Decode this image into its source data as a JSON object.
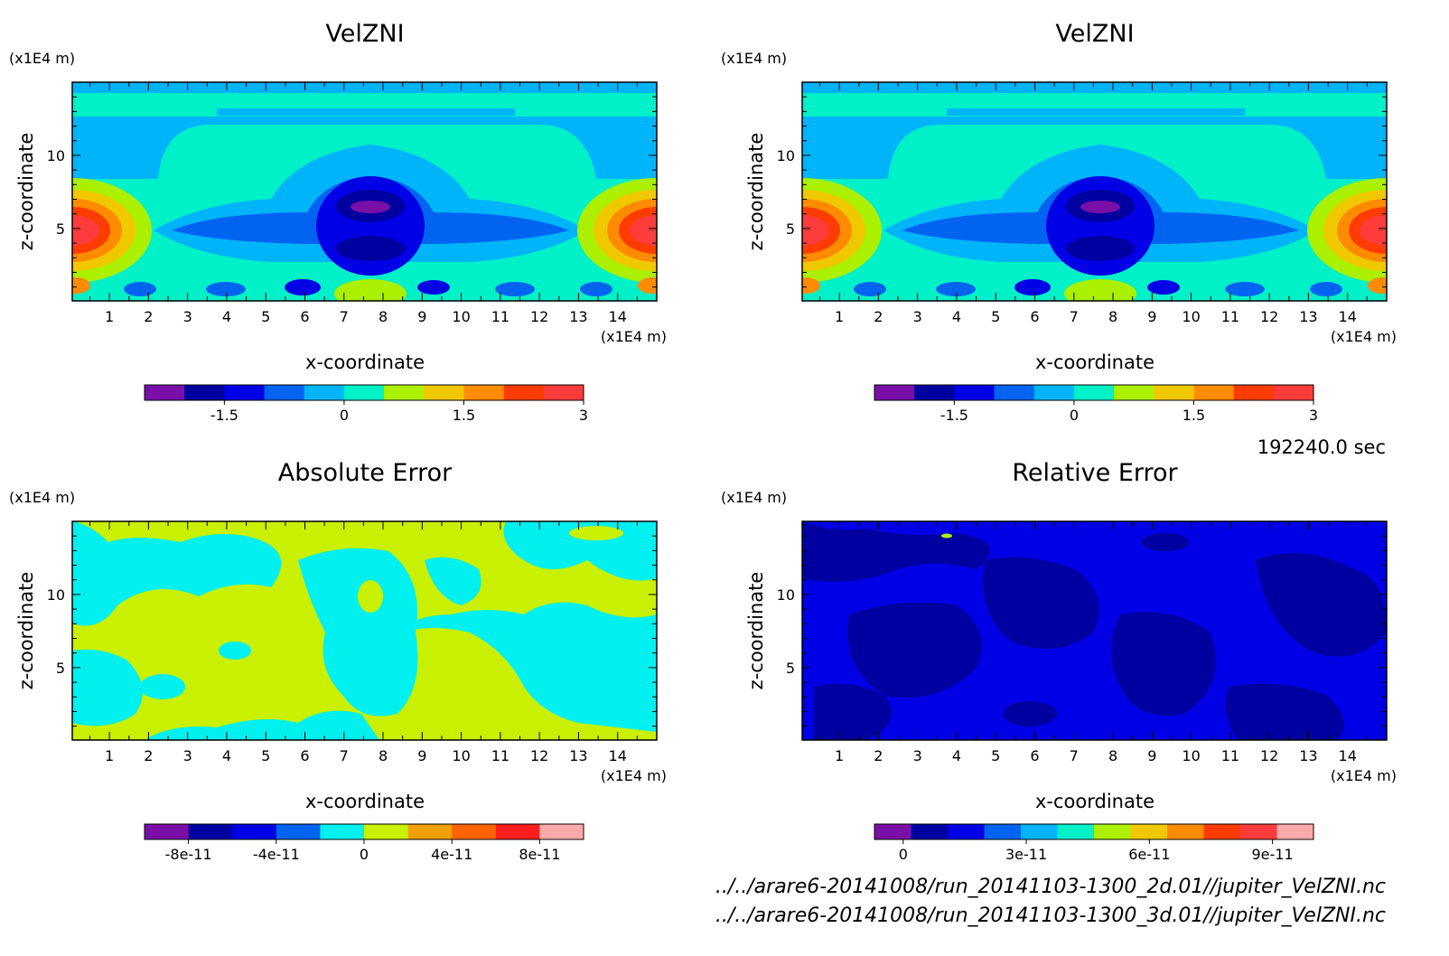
{
  "panels": [
    {
      "id": "velzni-2d",
      "title": "VelZNI",
      "x_unit": "(x1E4 m)",
      "z_unit": "(x1E4 m)",
      "xlabel": "x-coordinate",
      "ylabel": "z-coordinate",
      "x_ticks": [
        "1",
        "2",
        "3",
        "4",
        "5",
        "6",
        "7",
        "8",
        "9",
        "10",
        "11",
        "12",
        "13",
        "14"
      ],
      "z_ticks": [
        "5",
        "10"
      ],
      "colorbar": {
        "colors": [
          "#7a0fa8",
          "#0000a0",
          "#0000e6",
          "#0064f0",
          "#00b4fa",
          "#00f0c8",
          "#aaf000",
          "#f0c800",
          "#ff8c00",
          "#ff3c00",
          "#ff3c3c"
        ],
        "tick_labels": [
          "-1.5",
          "0",
          "1.5",
          "3"
        ]
      }
    },
    {
      "id": "velzni-3d",
      "title": "VelZNI",
      "x_unit": "(x1E4 m)",
      "z_unit": "(x1E4 m)",
      "xlabel": "x-coordinate",
      "ylabel": "z-coordinate",
      "x_ticks": [
        "1",
        "2",
        "3",
        "4",
        "5",
        "6",
        "7",
        "8",
        "9",
        "10",
        "11",
        "12",
        "13",
        "14"
      ],
      "z_ticks": [
        "5",
        "10"
      ],
      "colorbar": {
        "colors": [
          "#7a0fa8",
          "#0000a0",
          "#0000e6",
          "#0064f0",
          "#00b4fa",
          "#00f0c8",
          "#aaf000",
          "#f0c800",
          "#ff8c00",
          "#ff3c00",
          "#ff3c3c"
        ],
        "tick_labels": [
          "-1.5",
          "0",
          "1.5",
          "3"
        ]
      }
    },
    {
      "id": "absolute-error",
      "title": "Absolute Error",
      "x_unit": "(x1E4 m)",
      "z_unit": "(x1E4 m)",
      "xlabel": "x-coordinate",
      "ylabel": "z-coordinate",
      "x_ticks": [
        "1",
        "2",
        "3",
        "4",
        "5",
        "6",
        "7",
        "8",
        "9",
        "10",
        "11",
        "12",
        "13",
        "14"
      ],
      "z_ticks": [
        "5",
        "10"
      ],
      "colorbar": {
        "colors": [
          "#7a0fa8",
          "#0000a0",
          "#0000e6",
          "#0064f0",
          "#00f0f0",
          "#c8f000",
          "#f0a000",
          "#ff6400",
          "#ff1e1e",
          "#ffaaaa"
        ],
        "tick_labels": [
          "-8e-11",
          "-4e-11",
          "0",
          "4e-11",
          "8e-11"
        ]
      }
    },
    {
      "id": "relative-error",
      "title": "Relative Error",
      "x_unit": "(x1E4 m)",
      "z_unit": "(x1E4 m)",
      "xlabel": "x-coordinate",
      "ylabel": "z-coordinate",
      "x_ticks": [
        "1",
        "2",
        "3",
        "4",
        "5",
        "6",
        "7",
        "8",
        "9",
        "10",
        "11",
        "12",
        "13",
        "14"
      ],
      "z_ticks": [
        "5",
        "10"
      ],
      "colorbar": {
        "colors": [
          "#7a0fa8",
          "#0000a0",
          "#0000e6",
          "#0064f0",
          "#00b4fa",
          "#00f0c8",
          "#aaf000",
          "#f0c800",
          "#ff8c00",
          "#ff3c00",
          "#ff3c3c",
          "#ffaaaa"
        ],
        "tick_labels": [
          "0",
          "3e-11",
          "6e-11",
          "9e-11"
        ]
      }
    }
  ],
  "time_label": "192240.0 sec",
  "file_paths": [
    "../../arare6-20141008/run_20141103-1300_2d.01//jupiter_VelZNI.nc",
    "../../arare6-20141008/run_20141103-1300_3d.01//jupiter_VelZNI.nc"
  ],
  "chart_data": [
    {
      "type": "heatmap",
      "title": "VelZNI",
      "xlabel": "x-coordinate",
      "ylabel": "z-coordinate",
      "x_unit": "(x1E4 m)",
      "z_unit": "(x1E4 m)",
      "xlim": [
        0.05,
        15
      ],
      "ylim": [
        0.05,
        15
      ],
      "x_ticks": [
        1,
        2,
        3,
        4,
        5,
        6,
        7,
        8,
        9,
        10,
        11,
        12,
        13,
        14
      ],
      "y_ticks": [
        5,
        10
      ],
      "colorbar_ticks": [
        -1.5,
        0,
        1.5,
        3
      ],
      "colorbar_range": [
        -2.5,
        3
      ]
    },
    {
      "type": "heatmap",
      "title": "VelZNI",
      "xlabel": "x-coordinate",
      "ylabel": "z-coordinate",
      "x_unit": "(x1E4 m)",
      "z_unit": "(x1E4 m)",
      "xlim": [
        0.05,
        15
      ],
      "ylim": [
        0.05,
        15
      ],
      "x_ticks": [
        1,
        2,
        3,
        4,
        5,
        6,
        7,
        8,
        9,
        10,
        11,
        12,
        13,
        14
      ],
      "y_ticks": [
        5,
        10
      ],
      "colorbar_ticks": [
        -1.5,
        0,
        1.5,
        3
      ],
      "colorbar_range": [
        -2.5,
        3
      ]
    },
    {
      "type": "heatmap",
      "title": "Absolute Error",
      "xlabel": "x-coordinate",
      "ylabel": "z-coordinate",
      "x_unit": "(x1E4 m)",
      "z_unit": "(x1E4 m)",
      "xlim": [
        0.05,
        15
      ],
      "ylim": [
        0.05,
        15
      ],
      "x_ticks": [
        1,
        2,
        3,
        4,
        5,
        6,
        7,
        8,
        9,
        10,
        11,
        12,
        13,
        14
      ],
      "y_ticks": [
        5,
        10
      ],
      "colorbar_ticks": [
        -8e-11,
        -4e-11,
        0,
        4e-11,
        8e-11
      ],
      "colorbar_range": [
        -1e-10,
        1e-10
      ]
    },
    {
      "type": "heatmap",
      "title": "Relative Error",
      "xlabel": "x-coordinate",
      "ylabel": "z-coordinate",
      "x_unit": "(x1E4 m)",
      "z_unit": "(x1E4 m)",
      "xlim": [
        0.05,
        15
      ],
      "ylim": [
        0.05,
        15
      ],
      "x_ticks": [
        1,
        2,
        3,
        4,
        5,
        6,
        7,
        8,
        9,
        10,
        11,
        12,
        13,
        14
      ],
      "y_ticks": [
        5,
        10
      ],
      "colorbar_ticks": [
        0,
        3e-11,
        6e-11,
        9e-11
      ],
      "colorbar_range": [
        -7e-12,
        1e-10
      ]
    }
  ]
}
